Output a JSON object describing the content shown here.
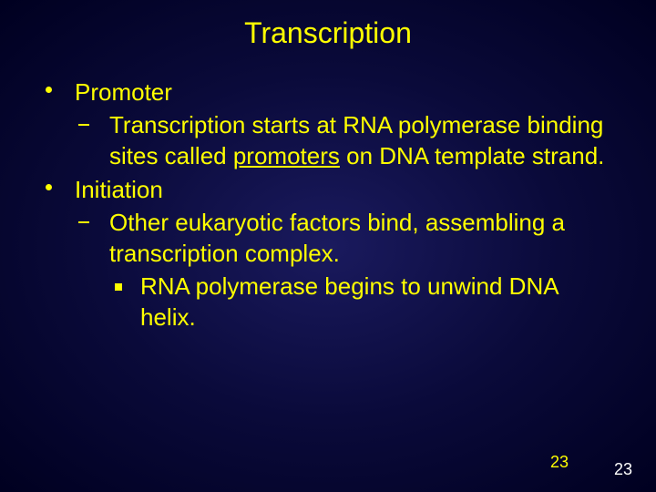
{
  "slide": {
    "title": "Transcription",
    "bullets": [
      {
        "text": "Promoter",
        "sub": [
          {
            "pre": "Transcription starts at RNA polymerase binding sites called ",
            "underline": "promoters",
            "post": " on DNA template strand."
          }
        ]
      },
      {
        "text": "Initiation",
        "sub": [
          {
            "pre": "Other eukaryotic factors bind, assembling a transcription complex.",
            "underline": "",
            "post": "",
            "subsub": [
              {
                "text": "RNA polymerase begins to unwind DNA helix."
              }
            ]
          }
        ]
      }
    ],
    "page_yellow": "23",
    "page_white": "23"
  },
  "style": {
    "background_gradient": [
      "#1a1a5e",
      "#0a0a3a",
      "#000020"
    ],
    "text_color": "#ffff00",
    "title_fontsize": 32,
    "body_fontsize": 26,
    "font_family": "Arial"
  }
}
